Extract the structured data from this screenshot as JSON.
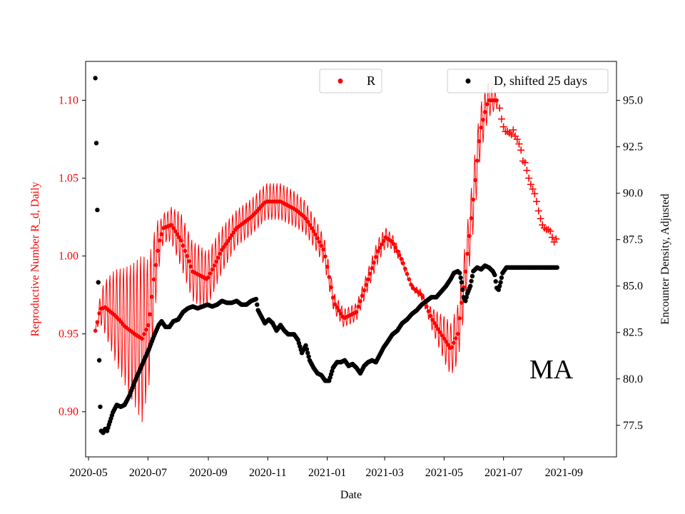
{
  "chart_data": {
    "type": "scatter",
    "xlabel": "Date",
    "ylabel_left": "Reproductive Number R_d, Daily",
    "ylabel_right": "Encounter Density, Adjusted",
    "annotation": "MA",
    "x_range": [
      "2020-04-28",
      "2021-10-25"
    ],
    "x_ticks": [
      "2020-05",
      "2020-07",
      "2020-09",
      "2020-11",
      "2021-01",
      "2021-03",
      "2021-05",
      "2021-07",
      "2021-09"
    ],
    "x_tick_dates": [
      "2020-05-01",
      "2020-07-01",
      "2020-09-01",
      "2020-11-01",
      "2021-01-01",
      "2021-03-01",
      "2021-05-01",
      "2021-07-01",
      "2021-09-01"
    ],
    "ylim_left": [
      0.871,
      1.125
    ],
    "yticks_left": [
      "0.90",
      "0.95",
      "1.00",
      "1.05",
      "1.10"
    ],
    "ylim_right": [
      75.8,
      97.1
    ],
    "yticks_right": [
      "77.5",
      "80.0",
      "82.5",
      "85.0",
      "87.5",
      "90.0",
      "92.5",
      "95.0"
    ],
    "colors": {
      "R": "#ff0000",
      "D": "#000000",
      "axis": "#000000"
    },
    "legend": {
      "R": "R",
      "D": "D, shifted 25 days"
    },
    "R_center": [
      [
        0,
        0.952
      ],
      [
        5,
        0.966
      ],
      [
        10,
        0.967
      ],
      [
        20,
        0.962
      ],
      [
        30,
        0.955
      ],
      [
        40,
        0.95
      ],
      [
        48,
        0.947
      ],
      [
        55,
        0.957
      ],
      [
        60,
        0.985
      ],
      [
        65,
        1.008
      ],
      [
        70,
        1.018
      ],
      [
        78,
        1.02
      ],
      [
        88,
        1.01
      ],
      [
        100,
        0.99
      ],
      [
        115,
        0.985
      ],
      [
        130,
        1.004
      ],
      [
        145,
        1.018
      ],
      [
        160,
        1.025
      ],
      [
        175,
        1.035
      ],
      [
        190,
        1.035
      ],
      [
        205,
        1.03
      ],
      [
        215,
        1.025
      ],
      [
        225,
        1.015
      ],
      [
        235,
        1.003
      ],
      [
        245,
        0.97
      ],
      [
        255,
        0.96
      ],
      [
        268,
        0.964
      ],
      [
        280,
        0.985
      ],
      [
        290,
        1.003
      ],
      [
        298,
        1.012
      ],
      [
        305,
        1.009
      ],
      [
        315,
        0.997
      ],
      [
        325,
        0.98
      ],
      [
        335,
        0.975
      ],
      [
        345,
        0.96
      ],
      [
        355,
        0.95
      ],
      [
        365,
        0.94
      ],
      [
        372,
        0.95
      ],
      [
        380,
        0.99
      ],
      [
        387,
        1.03
      ],
      [
        395,
        1.08
      ],
      [
        403,
        1.1
      ],
      [
        413,
        1.1
      ]
    ],
    "R_half_amp": [
      [
        0,
        0.0
      ],
      [
        8,
        0.015
      ],
      [
        20,
        0.03
      ],
      [
        38,
        0.045
      ],
      [
        48,
        0.055
      ],
      [
        58,
        0.035
      ],
      [
        68,
        0.01
      ],
      [
        75,
        0.01
      ],
      [
        88,
        0.018
      ],
      [
        105,
        0.02
      ],
      [
        125,
        0.016
      ],
      [
        145,
        0.012
      ],
      [
        170,
        0.012
      ],
      [
        200,
        0.012
      ],
      [
        230,
        0.01
      ],
      [
        250,
        0.006
      ],
      [
        270,
        0.006
      ],
      [
        290,
        0.008
      ],
      [
        310,
        0.004
      ],
      [
        325,
        0.002
      ],
      [
        340,
        0.004
      ],
      [
        360,
        0.016
      ],
      [
        375,
        0.02
      ],
      [
        390,
        0.02
      ],
      [
        403,
        0.012
      ],
      [
        413,
        0.004
      ]
    ],
    "R_plus_markers": [
      [
        415,
        1.095
      ],
      [
        417,
        1.088
      ],
      [
        419,
        1.083
      ],
      [
        421,
        1.08
      ],
      [
        423,
        1.08
      ],
      [
        425,
        1.079
      ],
      [
        427,
        1.078
      ],
      [
        429,
        1.081
      ],
      [
        431,
        1.077
      ],
      [
        433,
        1.075
      ],
      [
        435,
        1.072
      ],
      [
        437,
        1.068
      ],
      [
        439,
        1.061
      ],
      [
        441,
        1.06
      ],
      [
        443,
        1.055
      ],
      [
        445,
        1.05
      ],
      [
        447,
        1.046
      ],
      [
        449,
        1.043
      ],
      [
        451,
        1.04
      ],
      [
        453,
        1.035
      ],
      [
        455,
        1.029
      ],
      [
        457,
        1.024
      ],
      [
        459,
        1.02
      ],
      [
        461,
        1.018
      ],
      [
        463,
        1.017
      ],
      [
        465,
        1.017
      ],
      [
        467,
        1.016
      ],
      [
        469,
        1.012
      ],
      [
        471,
        1.009
      ],
      [
        473,
        1.011
      ]
    ],
    "D_points": [
      [
        0,
        96.2
      ],
      [
        1,
        92.7
      ],
      [
        2,
        89.1
      ],
      [
        3,
        85.2
      ],
      [
        4,
        81.0
      ],
      [
        5,
        78.5
      ],
      [
        6,
        77.2
      ],
      [
        8,
        77.1
      ],
      [
        10,
        77.3
      ],
      [
        12,
        77.2
      ],
      [
        15,
        77.7
      ],
      [
        18,
        78.2
      ],
      [
        22,
        78.6
      ],
      [
        26,
        78.5
      ],
      [
        30,
        78.6
      ],
      [
        35,
        79.1
      ],
      [
        40,
        79.8
      ],
      [
        45,
        80.4
      ],
      [
        50,
        81.0
      ],
      [
        55,
        81.6
      ],
      [
        60,
        82.3
      ],
      [
        65,
        82.9
      ],
      [
        68,
        83.1
      ],
      [
        72,
        82.8
      ],
      [
        76,
        82.8
      ],
      [
        80,
        83.1
      ],
      [
        85,
        83.2
      ],
      [
        90,
        83.6
      ],
      [
        95,
        83.8
      ],
      [
        100,
        83.9
      ],
      [
        105,
        83.8
      ],
      [
        110,
        83.9
      ],
      [
        115,
        84.0
      ],
      [
        120,
        83.9
      ],
      [
        125,
        84.0
      ],
      [
        130,
        84.2
      ],
      [
        135,
        84.1
      ],
      [
        140,
        84.1
      ],
      [
        145,
        84.2
      ],
      [
        150,
        84.0
      ],
      [
        155,
        84.0
      ],
      [
        160,
        84.2
      ],
      [
        165,
        84.3
      ],
      [
        167,
        83.7
      ],
      [
        170,
        83.4
      ],
      [
        174,
        83.0
      ],
      [
        178,
        83.2
      ],
      [
        182,
        83.0
      ],
      [
        186,
        82.6
      ],
      [
        190,
        82.9
      ],
      [
        194,
        82.6
      ],
      [
        198,
        82.4
      ],
      [
        200,
        82.4
      ],
      [
        204,
        82.4
      ],
      [
        208,
        82.1
      ],
      [
        212,
        81.4
      ],
      [
        216,
        81.8
      ],
      [
        220,
        81.0
      ],
      [
        224,
        80.6
      ],
      [
        228,
        80.3
      ],
      [
        232,
        80.2
      ],
      [
        236,
        79.9
      ],
      [
        240,
        79.9
      ],
      [
        244,
        80.6
      ],
      [
        248,
        80.9
      ],
      [
        252,
        80.9
      ],
      [
        256,
        81.0
      ],
      [
        260,
        80.7
      ],
      [
        264,
        80.8
      ],
      [
        268,
        80.6
      ],
      [
        272,
        80.3
      ],
      [
        276,
        80.7
      ],
      [
        280,
        80.9
      ],
      [
        284,
        81.0
      ],
      [
        288,
        80.9
      ],
      [
        292,
        81.3
      ],
      [
        296,
        81.7
      ],
      [
        300,
        82.0
      ],
      [
        305,
        82.4
      ],
      [
        310,
        82.6
      ],
      [
        315,
        83.0
      ],
      [
        320,
        83.2
      ],
      [
        325,
        83.5
      ],
      [
        330,
        83.7
      ],
      [
        335,
        84.0
      ],
      [
        340,
        84.2
      ],
      [
        345,
        84.4
      ],
      [
        350,
        84.4
      ],
      [
        355,
        84.7
      ],
      [
        360,
        85.0
      ],
      [
        365,
        85.4
      ],
      [
        368,
        85.7
      ],
      [
        372,
        85.8
      ],
      [
        374,
        85.7
      ],
      [
        376,
        85.2
      ],
      [
        378,
        84.4
      ],
      [
        380,
        84.2
      ],
      [
        382,
        84.6
      ],
      [
        385,
        85.0
      ],
      [
        388,
        85.8
      ],
      [
        392,
        86.0
      ],
      [
        396,
        85.9
      ],
      [
        400,
        86.1
      ],
      [
        404,
        86.0
      ],
      [
        408,
        85.8
      ],
      [
        410,
        85.6
      ],
      [
        412,
        84.9
      ],
      [
        414,
        84.8
      ],
      [
        416,
        85.2
      ],
      [
        418,
        85.7
      ],
      [
        422,
        86.0
      ],
      [
        428,
        86.0
      ],
      [
        440,
        86.0
      ],
      [
        455,
        86.0
      ],
      [
        465,
        86.0
      ],
      [
        470,
        86.0
      ],
      [
        474,
        86.0
      ]
    ]
  }
}
